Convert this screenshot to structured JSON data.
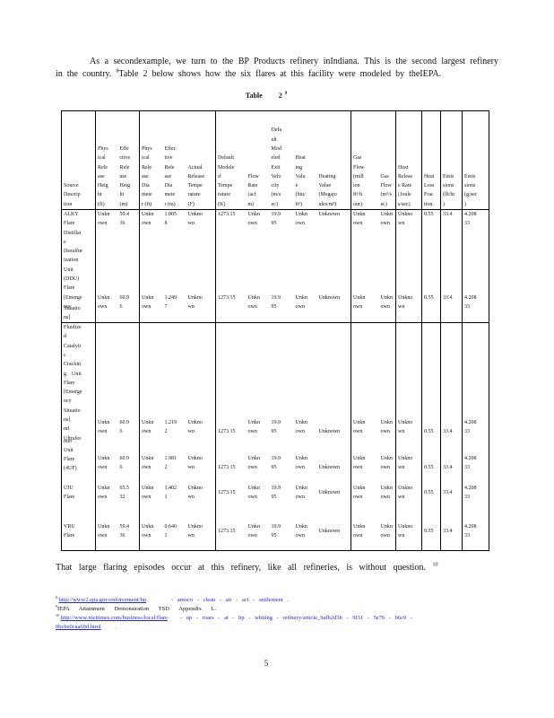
{
  "colors": {
    "link": "#2a2ac4",
    "text": "#141414",
    "border": "#000000"
  },
  "intro": {
    "part1": "As a secondexample,  we turn to the BP Products refinery inIndiana.  This is the second largest refinery in the country. ",
    "fn_ref": "8",
    "part2": "Table 2 below shows how the six flares at this facility were modeled  by theIEPA."
  },
  "table_title": {
    "label": "Table",
    "number": "2",
    "fn_ref": "9"
  },
  "table": {
    "headers": [
      "Source\nDescrip\ntion",
      "Phys\nical\nRele\nase\nHeig\nht\n(ft)",
      "Effe\nctive\nRele\nase\nHeig\nht\n(m)",
      "Phys\nical\nRele\nase\nDia\nmete\nr (ft)",
      "Effec\ntive\nRele\nase\nDia\nmete\nr (m)",
      "Actual\nRelease\nTempe\nrature\n(F)",
      "Default\nModele\nd\nTempe\nrature\n(K)",
      "Flow\nRate\n(acf\nm)",
      "Defa\nult\nMod\neled\nExit\nVelo\ncity\n(m/s\nec)",
      "Heat\ning\nValu\ne\n(btu/\nft³)",
      "Heating\nValue\n(Megajo\nules/m³)",
      "Gas\nFlow\n(mill\nion\nft³/h\nour)",
      "Gas\nFlow\n(m³/s\nec)",
      "Heat\nReleas\ne Rate\n(Joule\ns/sec)",
      "Heat\nLoss\nFrac\ntion",
      "Emis\nsions\n(lb/hr\n)",
      "Emis\nsions\n(g/sec\n)"
    ],
    "rows": [
      {
        "source": "ALKY\nFlare\nDistillat\ne\nDesulfur\nization\nUnit\n(DDU)\nFlare\n[Emerge\nncy",
        "cells": [
          "Unkn\nown",
          "59.4\n36",
          "Unkn\nown",
          "1.005\n8",
          "Unkno\nwn",
          "1273.15",
          "Unkn\nown",
          "19.9\n95",
          "Unkn\nown",
          "Unknown",
          "Unkn\nown",
          "Unkn\nown",
          "Unkno\nwn",
          "0.55",
          "33.4",
          "4.208\n33"
        ]
      },
      {
        "source": "Situatio\nns]",
        "cells": [
          "Unkn\nown",
          "60.9\n6",
          "Unkn\nown",
          "1.249\n7",
          "Unkno\nwn",
          "1273.15",
          "Unkn\nown",
          "19.9\n95",
          "Unkn\nown",
          "Unknown",
          "Unkn\nown",
          "Unkn\nown",
          "Unkno\nwn",
          "0.55",
          "33.4",
          "4.208\n33"
        ]
      },
      {
        "source": "Fluidize\nd\nCatalyti\nc\nCrackin\ng    Unit\nFlare\n[Emerge\nncy\nSituatio\nns]\nnd\nUltrafor",
        "cells": [
          "Unkn\nown",
          "60.9\n6",
          "Unkn\nown",
          "1.219\n2",
          "Unkno\nwn",
          "1273.15",
          "Unkn\nown",
          "19.9\n95",
          "Unkn\nown",
          "Unknown",
          "Unkn\nown",
          "Unkn\nown",
          "Unkno\nwn",
          "0.55",
          "33.4",
          "4.208\n33"
        ]
      },
      {
        "source": "mer\nUnit\nFlare\n(4UF)",
        "cells": [
          "Unkn\nown",
          "60.9\n6",
          "Unkn\nown",
          "1.981\n2",
          "Unkno\nwn",
          "1273.15",
          "Unkn\nown",
          "19.9\n95",
          "Unkn\nown",
          "Unknown",
          "Unkn\nown",
          "Unkn\nown",
          "Unkno\nwn",
          "0.55",
          "33.4",
          "4.208\n33"
        ]
      },
      {
        "source": "UIU\nFlare",
        "cells": [
          "Unkn\nown",
          "65.5\n32",
          "Unkn\nown",
          "1.402\n1",
          "Unkno\nwn",
          "1273.15",
          "Unkn\nown",
          "19.9\n95",
          "Unkn\nown",
          "Unknown",
          "Unkn\nown",
          "Unkn\nown",
          "Unkno\nwn",
          "0.55",
          "33.4",
          "4.208\n33"
        ]
      },
      {
        "source": "VRU\nFlare",
        "cells": [
          "Unkn\nown",
          "59.4\n36",
          "Unkn\nown",
          "0.640\n1",
          "Unkno\nwn",
          "1273.15",
          "Unkn\nown",
          "19.9\n95",
          "Unkn\nown",
          "Unknown",
          "Unkn\nown",
          "Unkn\nown",
          "Unkno\nwn",
          "0.55",
          "33.4",
          "4.208\n33"
        ]
      }
    ]
  },
  "closing": {
    "text": "That  large  flaring  episodes  occur  at this refinery,  like all refineries,  is without  question.",
    "fn_ref": "10"
  },
  "footnotes": [
    {
      "marker": "8",
      "url": "http://www2.epa.gov/enforcement/bp",
      "rest": "- amoco  - clean  - air - act - settlement   ."
    },
    {
      "marker": "9",
      "text": "IEPA Attainment Demonstration TSD Appendix L."
    },
    {
      "marker": "10",
      "url": "http://www.nwitimes.com/business/local/flare",
      "rest": "- up - roars  - at - bp - whiting   - refinery/article_9afb2d3b - 9f31  - 5e76  - b6c9  -",
      "line2": "9bcbe0caa60d.html",
      "line2_tail": "."
    }
  ],
  "page_number": "5"
}
